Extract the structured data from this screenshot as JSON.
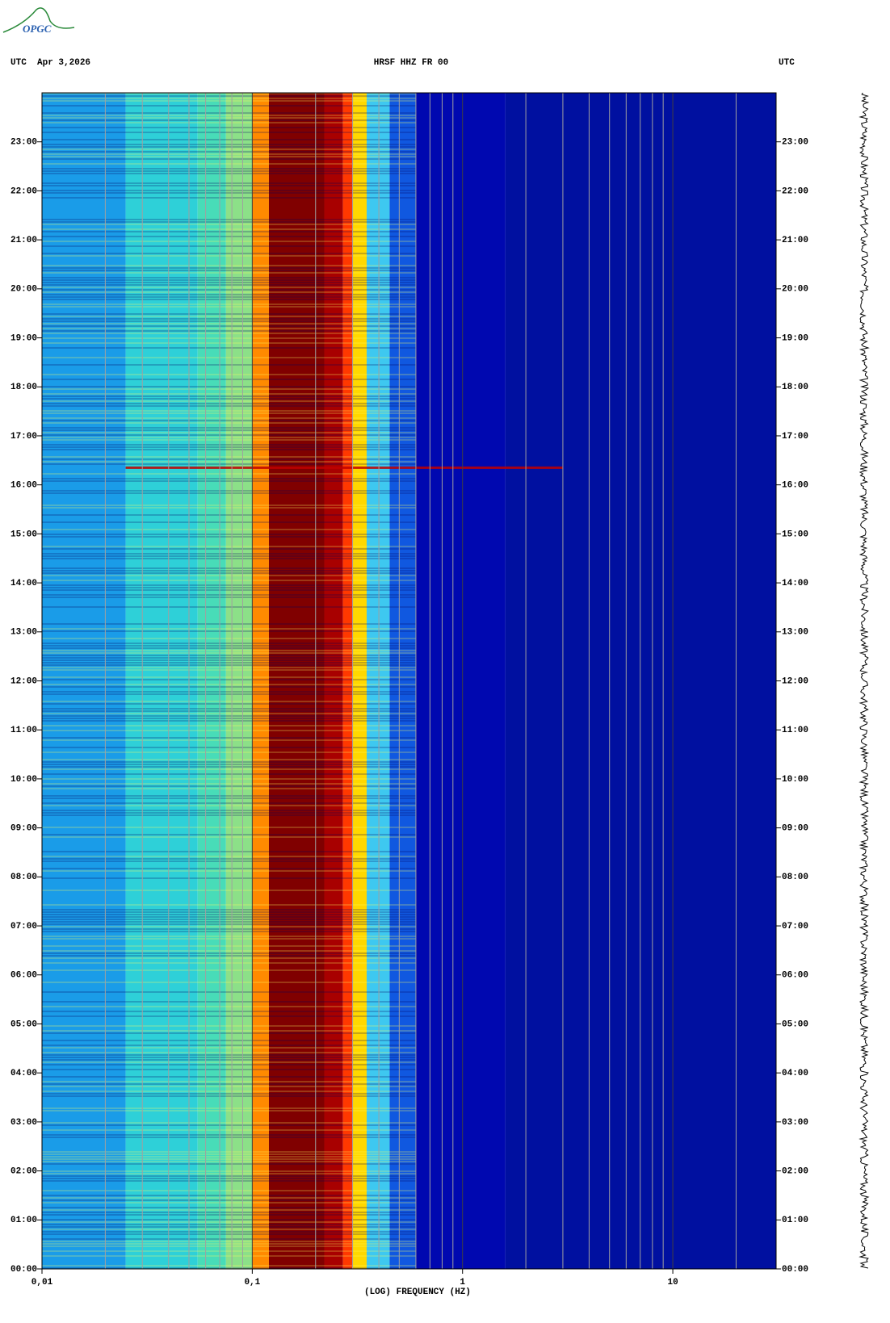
{
  "logo": "OPGC",
  "chart_data": {
    "type": "spectrogram",
    "title": "HRSF HHZ FR 00",
    "left_header": "UTC  Apr 3,2026",
    "right_header": "UTC",
    "x_label": "(LOG) FREQUENCY (HZ)",
    "x_log": true,
    "xlim": [
      0.01,
      31
    ],
    "xticks": [
      {
        "value": 0.01,
        "label": "0,01"
      },
      {
        "value": 0.1,
        "label": "0,1"
      },
      1,
      10
    ],
    "xgrid": [
      0.02,
      0.03,
      0.04,
      0.05,
      0.06,
      0.07,
      0.08,
      0.09,
      0.2,
      0.3,
      0.4,
      0.5,
      0.6,
      0.7,
      0.8,
      0.9,
      2,
      3,
      4,
      5,
      6,
      7,
      8,
      9,
      20
    ],
    "ylim": [
      0,
      24
    ],
    "yticks": [
      {
        "value": 0,
        "label": "00:00"
      },
      {
        "value": 1,
        "label": "01:00"
      },
      {
        "value": 2,
        "label": "02:00"
      },
      {
        "value": 3,
        "label": "03:00"
      },
      {
        "value": 4,
        "label": "04:00"
      },
      {
        "value": 5,
        "label": "05:00"
      },
      {
        "value": 6,
        "label": "06:00"
      },
      {
        "value": 7,
        "label": "07:00"
      },
      {
        "value": 8,
        "label": "08:00"
      },
      {
        "value": 9,
        "label": "09:00"
      },
      {
        "value": 10,
        "label": "10:00"
      },
      {
        "value": 11,
        "label": "11:00"
      },
      {
        "value": 12,
        "label": "12:00"
      },
      {
        "value": 13,
        "label": "13:00"
      },
      {
        "value": 14,
        "label": "14:00"
      },
      {
        "value": 15,
        "label": "15:00"
      },
      {
        "value": 16,
        "label": "16:00"
      },
      {
        "value": 17,
        "label": "17:00"
      },
      {
        "value": 18,
        "label": "18:00"
      },
      {
        "value": 19,
        "label": "19:00"
      },
      {
        "value": 20,
        "label": "20:00"
      },
      {
        "value": 21,
        "label": "21:00"
      },
      {
        "value": 22,
        "label": "22:00"
      },
      {
        "value": 23,
        "label": "23:00"
      }
    ],
    "bands": [
      {
        "from": 0.01,
        "to": 0.025,
        "color": "#1a9ce8"
      },
      {
        "from": 0.025,
        "to": 0.055,
        "color": "#2ed0d8"
      },
      {
        "from": 0.055,
        "to": 0.075,
        "color": "#48dcb8"
      },
      {
        "from": 0.075,
        "to": 0.1,
        "color": "#8ce088"
      },
      {
        "from": 0.1,
        "to": 0.12,
        "color": "#ff8a00"
      },
      {
        "from": 0.12,
        "to": 0.22,
        "color": "#800000"
      },
      {
        "from": 0.22,
        "to": 0.27,
        "color": "#a80000"
      },
      {
        "from": 0.27,
        "to": 0.3,
        "color": "#ff3800"
      },
      {
        "from": 0.3,
        "to": 0.35,
        "color": "#ffd800"
      },
      {
        "from": 0.35,
        "to": 0.45,
        "color": "#3ec8f0"
      },
      {
        "from": 0.45,
        "to": 0.6,
        "color": "#1058e0"
      },
      {
        "from": 0.6,
        "to": 1.6,
        "color": "#0008b0"
      },
      {
        "from": 1.6,
        "to": 31,
        "color": "#0010a0"
      }
    ],
    "event": {
      "time": 16.35,
      "from": 0.025,
      "to": 3,
      "color": "#c00000"
    }
  }
}
